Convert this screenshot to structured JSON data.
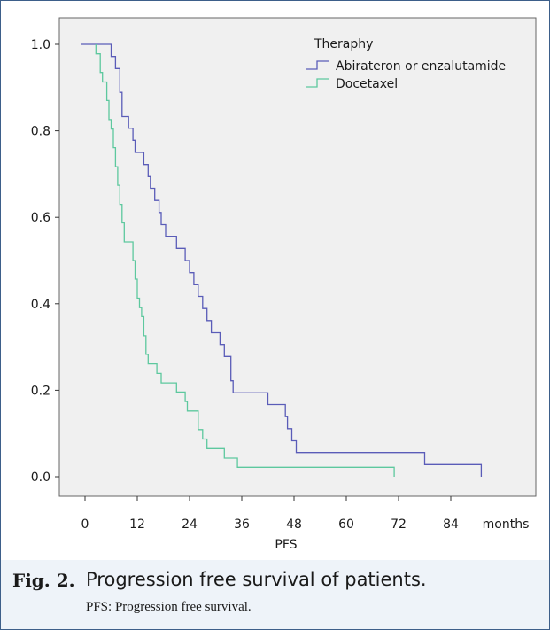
{
  "chart_data": {
    "type": "line",
    "subtype": "kaplan-meier step",
    "xlabel": "PFS",
    "x_unit_label": "months",
    "ylabel": "",
    "xlim": [
      -10,
      90
    ],
    "ylim": [
      0,
      1.0
    ],
    "x_ticks": [
      "0",
      "12",
      "24",
      "36",
      "48",
      "60",
      "72",
      "84"
    ],
    "y_ticks": [
      "0.0",
      "0.2",
      "0.4",
      "0.6",
      "0.8",
      "1.0"
    ],
    "legend": {
      "title": "Theraphy",
      "position": "top-right"
    },
    "grid": false,
    "series": [
      {
        "name": "Abirateron or enzalutamide",
        "color": "#5a5cb8",
        "points": [
          [
            -1,
            1.0
          ],
          [
            6,
            1.0
          ],
          [
            6,
            0.972
          ],
          [
            7,
            0.972
          ],
          [
            7,
            0.944
          ],
          [
            8,
            0.944
          ],
          [
            8,
            0.889
          ],
          [
            8.5,
            0.889
          ],
          [
            8.5,
            0.833
          ],
          [
            10,
            0.833
          ],
          [
            10,
            0.806
          ],
          [
            11,
            0.806
          ],
          [
            11,
            0.778
          ],
          [
            11.5,
            0.778
          ],
          [
            11.5,
            0.75
          ],
          [
            13.5,
            0.75
          ],
          [
            13.5,
            0.722
          ],
          [
            14.5,
            0.722
          ],
          [
            14.5,
            0.694
          ],
          [
            15,
            0.694
          ],
          [
            15,
            0.667
          ],
          [
            16,
            0.667
          ],
          [
            16,
            0.639
          ],
          [
            17,
            0.639
          ],
          [
            17,
            0.611
          ],
          [
            17.5,
            0.611
          ],
          [
            17.5,
            0.583
          ],
          [
            18.5,
            0.583
          ],
          [
            18.5,
            0.556
          ],
          [
            21,
            0.556
          ],
          [
            21,
            0.528
          ],
          [
            23,
            0.528
          ],
          [
            23,
            0.5
          ],
          [
            24,
            0.5
          ],
          [
            24,
            0.472
          ],
          [
            25,
            0.472
          ],
          [
            25,
            0.444
          ],
          [
            26,
            0.444
          ],
          [
            26,
            0.417
          ],
          [
            27,
            0.417
          ],
          [
            27,
            0.389
          ],
          [
            28,
            0.389
          ],
          [
            28,
            0.361
          ],
          [
            29,
            0.361
          ],
          [
            29,
            0.333
          ],
          [
            31,
            0.333
          ],
          [
            31,
            0.306
          ],
          [
            32,
            0.306
          ],
          [
            32,
            0.278
          ],
          [
            33.5,
            0.278
          ],
          [
            33.5,
            0.222
          ],
          [
            34,
            0.222
          ],
          [
            34,
            0.194
          ],
          [
            42,
            0.194
          ],
          [
            42,
            0.167
          ],
          [
            46,
            0.167
          ],
          [
            46,
            0.139
          ],
          [
            46.5,
            0.139
          ],
          [
            46.5,
            0.111
          ],
          [
            47.5,
            0.111
          ],
          [
            47.5,
            0.083
          ],
          [
            48.5,
            0.083
          ],
          [
            48.5,
            0.056
          ],
          [
            78,
            0.056
          ],
          [
            78,
            0.028
          ],
          [
            91,
            0.028
          ],
          [
            91,
            0.0
          ]
        ]
      },
      {
        "name": "Docetaxel",
        "color": "#5dc89e",
        "points": [
          [
            2.5,
            1.0
          ],
          [
            2.5,
            0.978
          ],
          [
            3.5,
            0.978
          ],
          [
            3.5,
            0.935
          ],
          [
            4,
            0.935
          ],
          [
            4,
            0.913
          ],
          [
            5,
            0.913
          ],
          [
            5,
            0.87
          ],
          [
            5.5,
            0.87
          ],
          [
            5.5,
            0.826
          ],
          [
            6,
            0.826
          ],
          [
            6,
            0.804
          ],
          [
            6.5,
            0.804
          ],
          [
            6.5,
            0.761
          ],
          [
            7,
            0.761
          ],
          [
            7,
            0.717
          ],
          [
            7.5,
            0.717
          ],
          [
            7.5,
            0.674
          ],
          [
            8,
            0.674
          ],
          [
            8,
            0.63
          ],
          [
            8.5,
            0.63
          ],
          [
            8.5,
            0.587
          ],
          [
            9,
            0.587
          ],
          [
            9,
            0.543
          ],
          [
            11,
            0.543
          ],
          [
            11,
            0.5
          ],
          [
            11.5,
            0.5
          ],
          [
            11.5,
            0.457
          ],
          [
            12,
            0.457
          ],
          [
            12,
            0.413
          ],
          [
            12.5,
            0.413
          ],
          [
            12.5,
            0.391
          ],
          [
            13,
            0.391
          ],
          [
            13,
            0.37
          ],
          [
            13.5,
            0.37
          ],
          [
            13.5,
            0.326
          ],
          [
            14,
            0.326
          ],
          [
            14,
            0.283
          ],
          [
            14.5,
            0.283
          ],
          [
            14.5,
            0.261
          ],
          [
            16.5,
            0.261
          ],
          [
            16.5,
            0.239
          ],
          [
            17.5,
            0.239
          ],
          [
            17.5,
            0.217
          ],
          [
            21,
            0.217
          ],
          [
            21,
            0.196
          ],
          [
            23,
            0.196
          ],
          [
            23,
            0.174
          ],
          [
            23.5,
            0.174
          ],
          [
            23.5,
            0.152
          ],
          [
            26,
            0.152
          ],
          [
            26,
            0.109
          ],
          [
            27,
            0.109
          ],
          [
            27,
            0.087
          ],
          [
            28,
            0.087
          ],
          [
            28,
            0.065
          ],
          [
            32,
            0.065
          ],
          [
            32,
            0.043
          ],
          [
            35,
            0.043
          ],
          [
            35,
            0.022
          ],
          [
            71,
            0.022
          ],
          [
            71,
            0.0
          ]
        ]
      }
    ]
  },
  "caption": {
    "label": "Fig. 2.",
    "title": "Progression free survival of patients.",
    "note": "PFS: Progression free survival."
  }
}
